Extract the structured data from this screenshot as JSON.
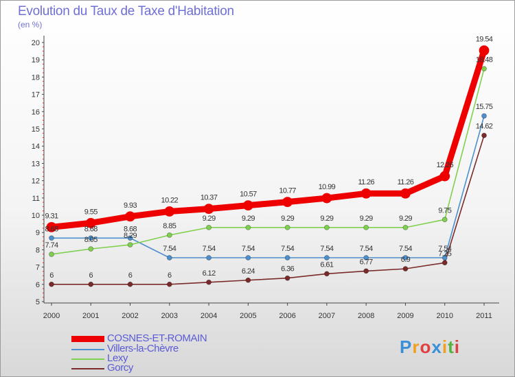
{
  "title": "Evolution du Taux de Taxe d'Habitation",
  "unit": "(en %)",
  "logo": "Proxiti",
  "chart_data": {
    "type": "line",
    "title": "Evolution du Taux de Taxe d'Habitation",
    "ylabel": "(en %)",
    "x": [
      "2000",
      "2001",
      "2002",
      "2003",
      "2004",
      "2005",
      "2006",
      "2007",
      "2008",
      "2009",
      "2010",
      "2011"
    ],
    "ylim": [
      5,
      20
    ],
    "yticks": [
      "5",
      "6",
      "7",
      "8",
      "9",
      "10",
      "11",
      "12",
      "13",
      "14",
      "15",
      "16",
      "17",
      "18",
      "19",
      "20"
    ],
    "grid": false,
    "legend": "bottom-left",
    "series": [
      {
        "name": "COSNES-ET-ROMAIN",
        "color": "#ee0000",
        "values": [
          9.31,
          9.55,
          9.93,
          10.22,
          10.37,
          10.57,
          10.77,
          10.99,
          11.26,
          11.26,
          12.26,
          19.54
        ],
        "labels": [
          "9.31",
          "9.55",
          "9.93",
          "10.22",
          "10.37",
          "10.57",
          "10.77",
          "10.99",
          "11.26",
          "11.26",
          "12.26",
          "19.54"
        ]
      },
      {
        "name": "Villers-la-Chèvre",
        "color": "#4d8fcc",
        "values": [
          8.68,
          8.68,
          8.68,
          7.54,
          7.54,
          7.54,
          7.54,
          7.54,
          7.54,
          7.54,
          7.54,
          15.75
        ],
        "labels": [
          "8.68",
          "8.68",
          "8.68",
          "7.54",
          "7.54",
          "7.54",
          "7.54",
          "7.54",
          "7.54",
          "7.54",
          "7.54",
          "15.75"
        ]
      },
      {
        "name": "Lexy",
        "color": "#7fd04e",
        "values": [
          7.74,
          8.05,
          8.29,
          8.85,
          9.29,
          9.29,
          9.29,
          9.29,
          9.29,
          9.29,
          9.75,
          18.48
        ],
        "labels": [
          "7.74",
          "8.05",
          "8.29",
          "8.85",
          "9.29",
          "9.29",
          "9.29",
          "9.29",
          "9.29",
          "9.29",
          "9.75",
          "18.48"
        ]
      },
      {
        "name": "Gorcy",
        "color": "#7a2a2a",
        "values": [
          6,
          6,
          6,
          6,
          6.12,
          6.24,
          6.36,
          6.61,
          6.77,
          6.9,
          7.25,
          14.62
        ],
        "labels": [
          "6",
          "6",
          "6",
          "6",
          "6.12",
          "6.24",
          "6.36",
          "6.61",
          "6.77",
          "6.9",
          "7.25",
          "14.62"
        ]
      }
    ]
  }
}
